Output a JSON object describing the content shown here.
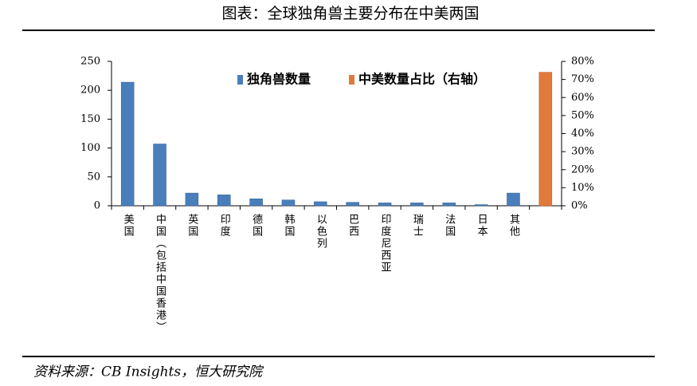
{
  "chart_data": {
    "type": "bar",
    "title": "图表：全球独角兽主要分布在中美两国",
    "source": "资料来源：CB Insights，恒大研究院",
    "categories": [
      "美国",
      "中国（包括中国香港）",
      "英国",
      "印度",
      "德国",
      "韩国",
      "以色列",
      "巴西",
      "印度尼西亚",
      "瑞士",
      "法国",
      "日本",
      "其他",
      null
    ],
    "series": [
      {
        "name": "独角兽数量",
        "color": "#4a7ebb",
        "values": [
          214,
          107,
          22,
          19,
          12,
          10,
          7,
          6,
          5,
          5,
          5,
          2,
          22,
          null
        ]
      },
      {
        "name": "中美数量占比（右轴）",
        "color": "#e07a3a",
        "axis": "y2",
        "values": [
          null,
          null,
          null,
          null,
          null,
          null,
          null,
          null,
          null,
          null,
          null,
          null,
          null,
          74
        ]
      }
    ],
    "ylim": [
      0,
      250
    ],
    "yticks": [
      0,
      50,
      100,
      150,
      200,
      250
    ],
    "y2lim": [
      0,
      80
    ],
    "y2ticks": [
      {
        "value": 0,
        "label": "0%"
      },
      {
        "value": 10,
        "label": "10%"
      },
      {
        "value": 20,
        "label": "20%"
      },
      {
        "value": 30,
        "label": "30%"
      },
      {
        "value": 40,
        "label": "40%"
      },
      {
        "value": 50,
        "label": "50%"
      },
      {
        "value": 60,
        "label": "60%"
      },
      {
        "value": 70,
        "label": "70%"
      },
      {
        "value": 80,
        "label": "80%"
      }
    ],
    "grid": false
  }
}
